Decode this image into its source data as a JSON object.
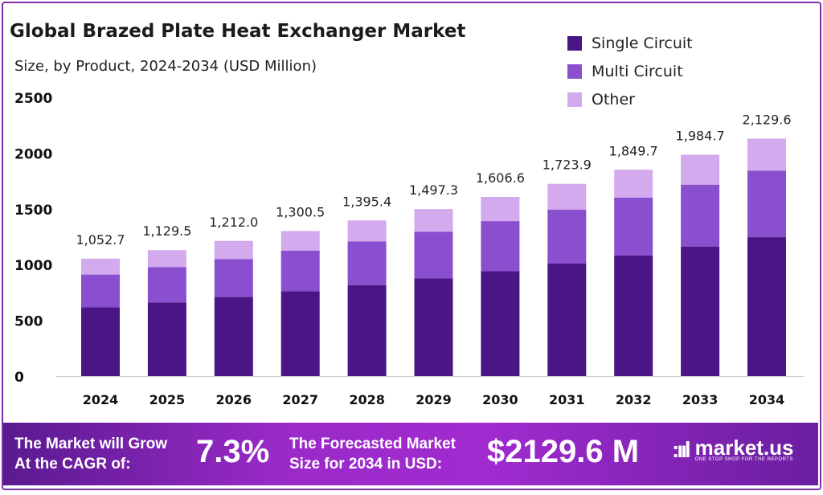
{
  "chart_data": {
    "type": "bar",
    "stacked": true,
    "title": "Global Brazed Plate Heat Exchanger Market",
    "subtitle": "Size, by Product, 2024-2034 (USD Million)",
    "categories": [
      "2024",
      "2025",
      "2026",
      "2027",
      "2028",
      "2029",
      "2030",
      "2031",
      "2032",
      "2033",
      "2034"
    ],
    "series": [
      {
        "name": "Single Circuit",
        "color": "#4a1585",
        "values": [
          615.8,
          660.8,
          709.0,
          760.8,
          816.3,
          875.9,
          939.9,
          1008.5,
          1082.1,
          1161.0,
          1245.8
        ]
      },
      {
        "name": "Multi Circuit",
        "color": "#8a4fcf",
        "values": [
          294.8,
          316.3,
          339.4,
          364.1,
          390.7,
          419.2,
          449.8,
          482.7,
          517.9,
          555.7,
          596.3
        ]
      },
      {
        "name": "Other",
        "color": "#d3aaee",
        "values": [
          142.1,
          152.4,
          163.6,
          175.6,
          188.4,
          202.2,
          216.9,
          232.7,
          249.7,
          267.9,
          287.5
        ]
      }
    ],
    "totals": [
      "1,052.7",
      "1,129.5",
      "1,212.0",
      "1,300.5",
      "1,395.4",
      "1,497.3",
      "1,606.6",
      "1,723.9",
      "1,849.7",
      "1,984.7",
      "2,129.6"
    ],
    "totals_values": [
      1052.7,
      1129.5,
      1212.0,
      1300.5,
      1395.4,
      1497.3,
      1606.6,
      1723.9,
      1849.7,
      1984.7,
      2129.6
    ],
    "yticks": [
      "0",
      "500",
      "1000",
      "1500",
      "2000",
      "2500"
    ],
    "ylim": [
      0,
      2500
    ],
    "grid": false,
    "legend": "top-right"
  },
  "banner": {
    "cagr_text": "The Market will Grow At the CAGR of:",
    "cagr_line1": "The Market will Grow",
    "cagr_line2": "At the CAGR of:",
    "cagr_value": "7.3%",
    "forecast_line1": "The Forecasted Market",
    "forecast_line2": "Size for 2034 in USD:",
    "forecast_value": "$2129.6 M",
    "brand": "market.us",
    "tagline": "ONE STOP SHOP FOR THE REPORTS"
  }
}
